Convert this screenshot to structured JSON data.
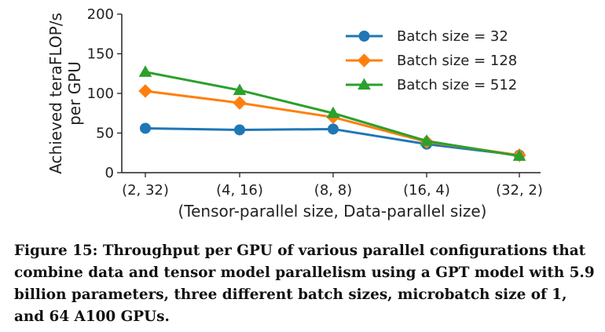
{
  "chart_data": {
    "type": "line",
    "categories": [
      "(2, 32)",
      "(4, 16)",
      "(8, 8)",
      "(16, 4)",
      "(32, 2)"
    ],
    "xlabel": "(Tensor-parallel size, Data-parallel size)",
    "ylabel_lines": [
      "Achieved teraFLOP/s",
      "per GPU"
    ],
    "ylim": [
      0,
      200
    ],
    "yticks": [
      0,
      50,
      100,
      150,
      200
    ],
    "legend_position": "top-right",
    "grid": false,
    "series": [
      {
        "name": "Batch size = 32",
        "color": "#1f77b4",
        "marker": "circle",
        "values": [
          56,
          54,
          55,
          36,
          22
        ]
      },
      {
        "name": "Batch size = 128",
        "color": "#ff7f0e",
        "marker": "diamond",
        "values": [
          103,
          88,
          70,
          39,
          22
        ]
      },
      {
        "name": "Batch size = 512",
        "color": "#2ca02c",
        "marker": "triangle",
        "values": [
          127,
          104,
          75,
          40,
          21
        ]
      }
    ]
  },
  "caption": "Figure 15: Throughput per GPU of various parallel configurations that combine data and tensor model parallelism using a GPT model with 5.9 billion parameters, three different batch sizes, microbatch size of 1, and 64 A100 GPUs."
}
